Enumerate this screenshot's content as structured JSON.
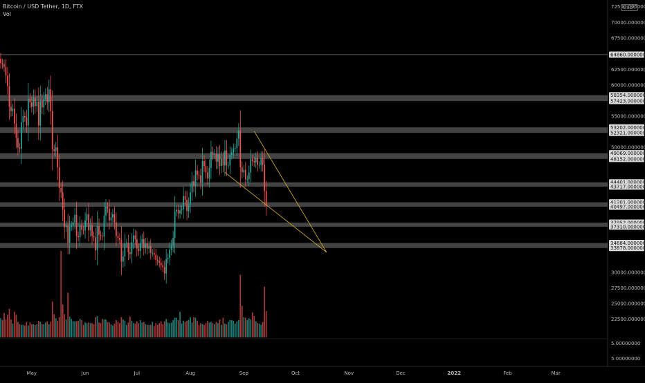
{
  "header": {
    "title": "Bitcoin / USD Tether, 1D, FTX",
    "indicator": "Vol",
    "currency_tag": "USDT",
    "partial_top_label": "72500.00000000"
  },
  "colors": {
    "background": "#000000",
    "up": "#26a69a",
    "down": "#ef5350",
    "vol_up": "#1b7a72",
    "vol_down": "#a33a38",
    "zone_fill": "#5a5a5a",
    "trendline": "#c9a227",
    "axis_label_bg": "#d9d9d9"
  },
  "chart_data": {
    "type": "candlestick",
    "title": "Bitcoin / USD Tether, 1D, FTX",
    "price_axis": {
      "range": [
        22000,
        72500
      ],
      "labels": [
        "70000.00000000",
        "67500.00000000",
        "62500.00000000",
        "60000.00000000",
        "55000.00000000",
        "50000.00000000",
        "30000.00000000",
        "27500.00000000",
        "25000.00000000",
        "22500.00000000"
      ]
    },
    "volume_axis_labels": [
      "5.00000000",
      "5.00000000"
    ],
    "time_axis": {
      "range": [
        "2021-04-13",
        "2022-03-31"
      ],
      "labels": [
        {
          "text": "May",
          "date": "2021-05-01"
        },
        {
          "text": "Jun",
          "date": "2021-06-01"
        },
        {
          "text": "Jul",
          "date": "2021-07-01"
        },
        {
          "text": "Aug",
          "date": "2021-08-01"
        },
        {
          "text": "Sep",
          "date": "2021-09-01"
        },
        {
          "text": "Oct",
          "date": "2021-10-01"
        },
        {
          "text": "Nov",
          "date": "2021-11-01"
        },
        {
          "text": "Dec",
          "date": "2021-12-01"
        },
        {
          "text": "2022",
          "date": "2022-01-01"
        },
        {
          "text": "Feb",
          "date": "2022-02-01"
        },
        {
          "text": "Mar",
          "date": "2022-03-01"
        }
      ]
    },
    "horizontal_levels": [
      "64860.00000000"
    ],
    "zones": [
      {
        "top": "58354.00000000",
        "bottom": "57423.00000000"
      },
      {
        "top": "53202.00000000",
        "bottom": "52321.00000000"
      },
      {
        "top": "49069.00000000",
        "bottom": "48152.00000000"
      },
      {
        "top": "44401.00000000",
        "bottom": "43717.00000000"
      },
      {
        "top": "41201.00000000",
        "bottom": "40497.00000000"
      },
      {
        "top": "37952.00000000",
        "bottom": "37310.00000000"
      },
      {
        "top": "34684.00000000",
        "bottom": "33878.00000000"
      }
    ],
    "trendlines": [
      {
        "from": {
          "date": "2021-09-07",
          "price": 52600
        },
        "to": {
          "date": "2021-10-19",
          "price": 33200
        }
      },
      {
        "from": {
          "date": "2021-08-21",
          "price": 46000
        },
        "to": {
          "date": "2021-10-19",
          "price": 33200
        }
      }
    ],
    "series": [
      {
        "start_date": "2021-04-13",
        "close": [
          63500,
          63300,
          62900,
          61500,
          59800,
          56500,
          55800,
          56200,
          53800,
          51500,
          50000,
          49800,
          54000,
          55000,
          54800,
          53500,
          57800,
          57200,
          56500,
          58000,
          56600,
          57300,
          53500,
          57500,
          56400,
          57700,
          58500,
          57200,
          59300,
          55800,
          49700,
          49400,
          50000,
          46800,
          43500,
          42800,
          40000,
          37200,
          37500,
          34700,
          37300,
          37500,
          38000,
          39200,
          35800,
          35600,
          37500,
          36800,
          36700,
          38300,
          39300,
          36700,
          37600,
          35800,
          35600,
          33500,
          37400,
          36000,
          35800,
          35700,
          39100,
          40500,
          40200,
          38300,
          38800,
          39300,
          38000,
          35800,
          35500,
          35200,
          31700,
          32500,
          34600,
          34700,
          33200,
          32900,
          34800,
          35900,
          35300,
          33800,
          33400,
          34700,
          35300,
          33900,
          34600,
          33800,
          34200,
          33100,
          33100,
          32800,
          32000,
          31800,
          31500,
          31100,
          30800,
          29800,
          32100,
          32300,
          33600,
          34300,
          35500,
          39700,
          40000,
          39400,
          39900,
          40100,
          42200,
          41600,
          39800,
          40900,
          42800,
          44600,
          43800,
          46300,
          45600,
          45500,
          44400,
          47800,
          47000,
          46000,
          45000,
          46700,
          49300,
          48800,
          49000,
          47700,
          48900,
          47000,
          48200,
          47100,
          49500,
          47100,
          47100,
          48800,
          49200,
          49800,
          49900,
          51400,
          52700,
          46800,
          46000,
          46400,
          44900,
          44900,
          46000,
          48100,
          47800,
          47600,
          48300,
          47200,
          47200,
          48300,
          47200,
          43000,
          40700
        ]
      }
    ],
    "volume": [
      3.2,
      2.9,
      4.1,
      3.0,
      3.8,
      4.8,
      3.0,
      2.3,
      4.3,
      3.8,
      2.6,
      2.2,
      2.1,
      2.1,
      2.0,
      2.6,
      2.0,
      2.5,
      2.2,
      2.2,
      2.1,
      2.2,
      2.8,
      2.6,
      2.2,
      2.2,
      2.5,
      2.7,
      2.2,
      2.6,
      6.0,
      3.9,
      3.2,
      2.8,
      3.4,
      14.5,
      5.5,
      3.9,
      3.0,
      7.5,
      3.5,
      3.1,
      2.7,
      2.7,
      2.7,
      2.8,
      3.1,
      2.9,
      2.1,
      2.5,
      2.4,
      2.5,
      2.4,
      2.4,
      2.2,
      3.4,
      3.6,
      2.5,
      2.4,
      3.1,
      3.0,
      3.0,
      2.6,
      2.5,
      2.2,
      2.0,
      2.3,
      2.9,
      2.6,
      2.4,
      3.4,
      3.0,
      2.8,
      2.1,
      2.5,
      3.5,
      2.8,
      2.4,
      2.3,
      2.7,
      2.4,
      2.9,
      2.5,
      2.6,
      2.2,
      2.1,
      2.1,
      2.1,
      2.6,
      1.9,
      2.4,
      2.1,
      2.4,
      2.7,
      2.2,
      2.7,
      3.1,
      2.5,
      2.4,
      2.5,
      2.9,
      3.3,
      3.3,
      2.9,
      4.3,
      2.3,
      2.8,
      2.6,
      2.8,
      2.9,
      3.4,
      2.5,
      3.4,
      3.3,
      2.8,
      2.1,
      2.4,
      2.2,
      2.1,
      2.4,
      2.8,
      2.5,
      2.6,
      2.4,
      2.2,
      2.6,
      2.4,
      3.0,
      2.1,
      3.3,
      2.3,
      2.2,
      2.6,
      2.9,
      2.9,
      2.8,
      2.3,
      2.7,
      2.9,
      10.5,
      5.3,
      3.4,
      3.3,
      2.9,
      3.2,
      3.0,
      4.2,
      3.6,
      2.7,
      2.4,
      2.3,
      2.1,
      2.6,
      8.5,
      4.4
    ]
  }
}
